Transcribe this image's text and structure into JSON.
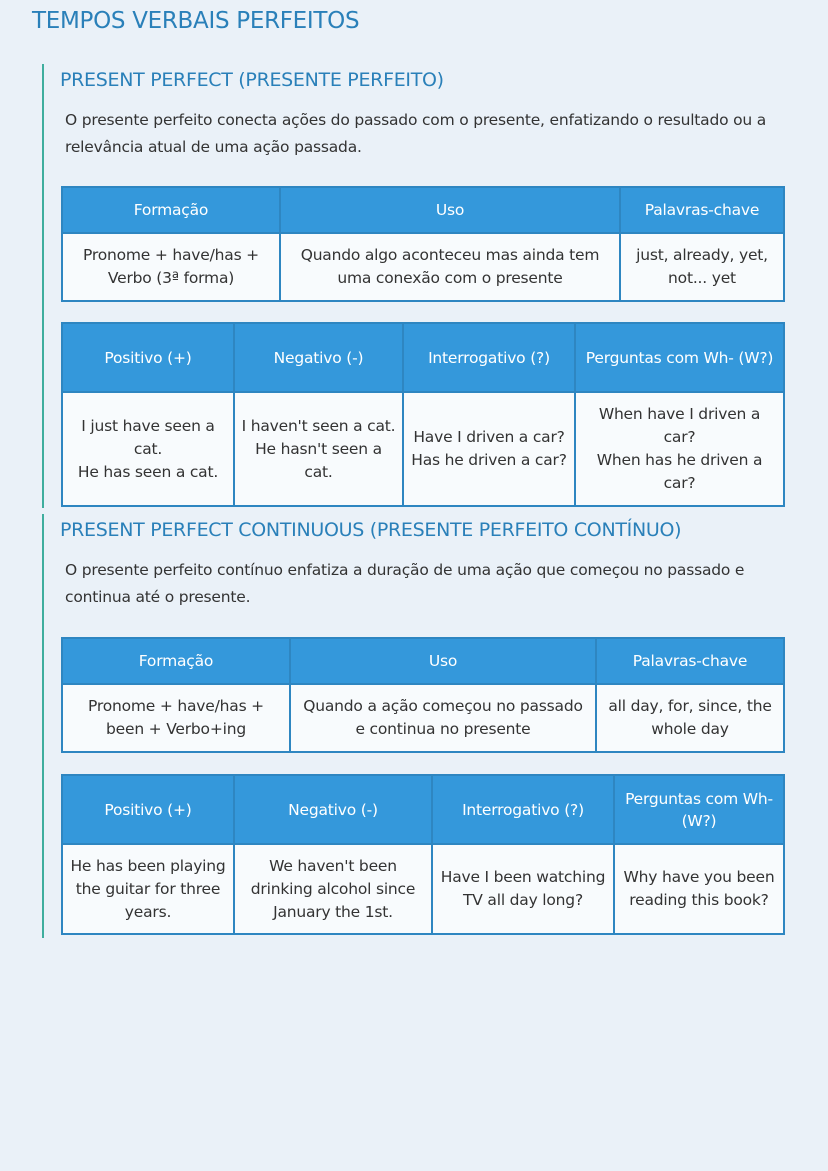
{
  "title": "TEMPOS VERBAIS PERFEITOS",
  "sections": [
    {
      "heading": "PRESENT PERFECT (PRESENTE PERFEITO)",
      "description": "O presente perfeito conecta ações do passado com o presente, enfatizando o resultado ou a relevância atual de uma ação passada.",
      "summary_table": {
        "headers": [
          "Formação",
          "Uso",
          "Palavras-chave"
        ],
        "row": [
          "Pronome + have/has + Verbo (3ª forma)",
          "Quando algo aconteceu mas ainda tem uma conexão com o presente",
          "just, already, yet, not... yet"
        ]
      },
      "examples_table": {
        "headers": [
          "Positivo (+)",
          "Negativo (-)",
          "Interrogativo (?)",
          "Perguntas com Wh- (W?)"
        ],
        "row": [
          [
            "I just have seen a cat.",
            "He has seen a cat."
          ],
          [
            "I haven't seen a cat.",
            "He hasn't seen a cat."
          ],
          [
            "Have I driven a car?",
            "Has he driven a car?"
          ],
          [
            "When have I driven a car?",
            "When has he driven a car?"
          ]
        ]
      }
    },
    {
      "heading": "PRESENT PERFECT CONTINUOUS (PRESENTE PERFEITO CONTÍNUO)",
      "description": "O presente perfeito contínuo enfatiza a duração de uma ação que começou no passado e continua até o presente.",
      "summary_table": {
        "headers": [
          "Formação",
          "Uso",
          "Palavras-chave"
        ],
        "row": [
          "Pronome + have/has + been + Verbo+ing",
          "Quando a ação começou no passado e continua no presente",
          "all day, for, since, the whole day"
        ]
      },
      "examples_table": {
        "headers": [
          "Positivo (+)",
          "Negativo (-)",
          "Interrogativo (?)",
          "Perguntas com Wh- (W?)"
        ],
        "row": [
          [
            "He has been playing the guitar for three years."
          ],
          [
            "We haven't been drinking alcohol since January the 1st."
          ],
          [
            "Have I been watching TV all day long?"
          ],
          [
            "Why have you been reading this book?"
          ]
        ]
      }
    }
  ],
  "colors": {
    "accent": "#2a80b9",
    "header_bg": "#3498db",
    "border": "#2e86c1",
    "section_rule": "#3fae9e",
    "background": "#eaf1f8"
  }
}
